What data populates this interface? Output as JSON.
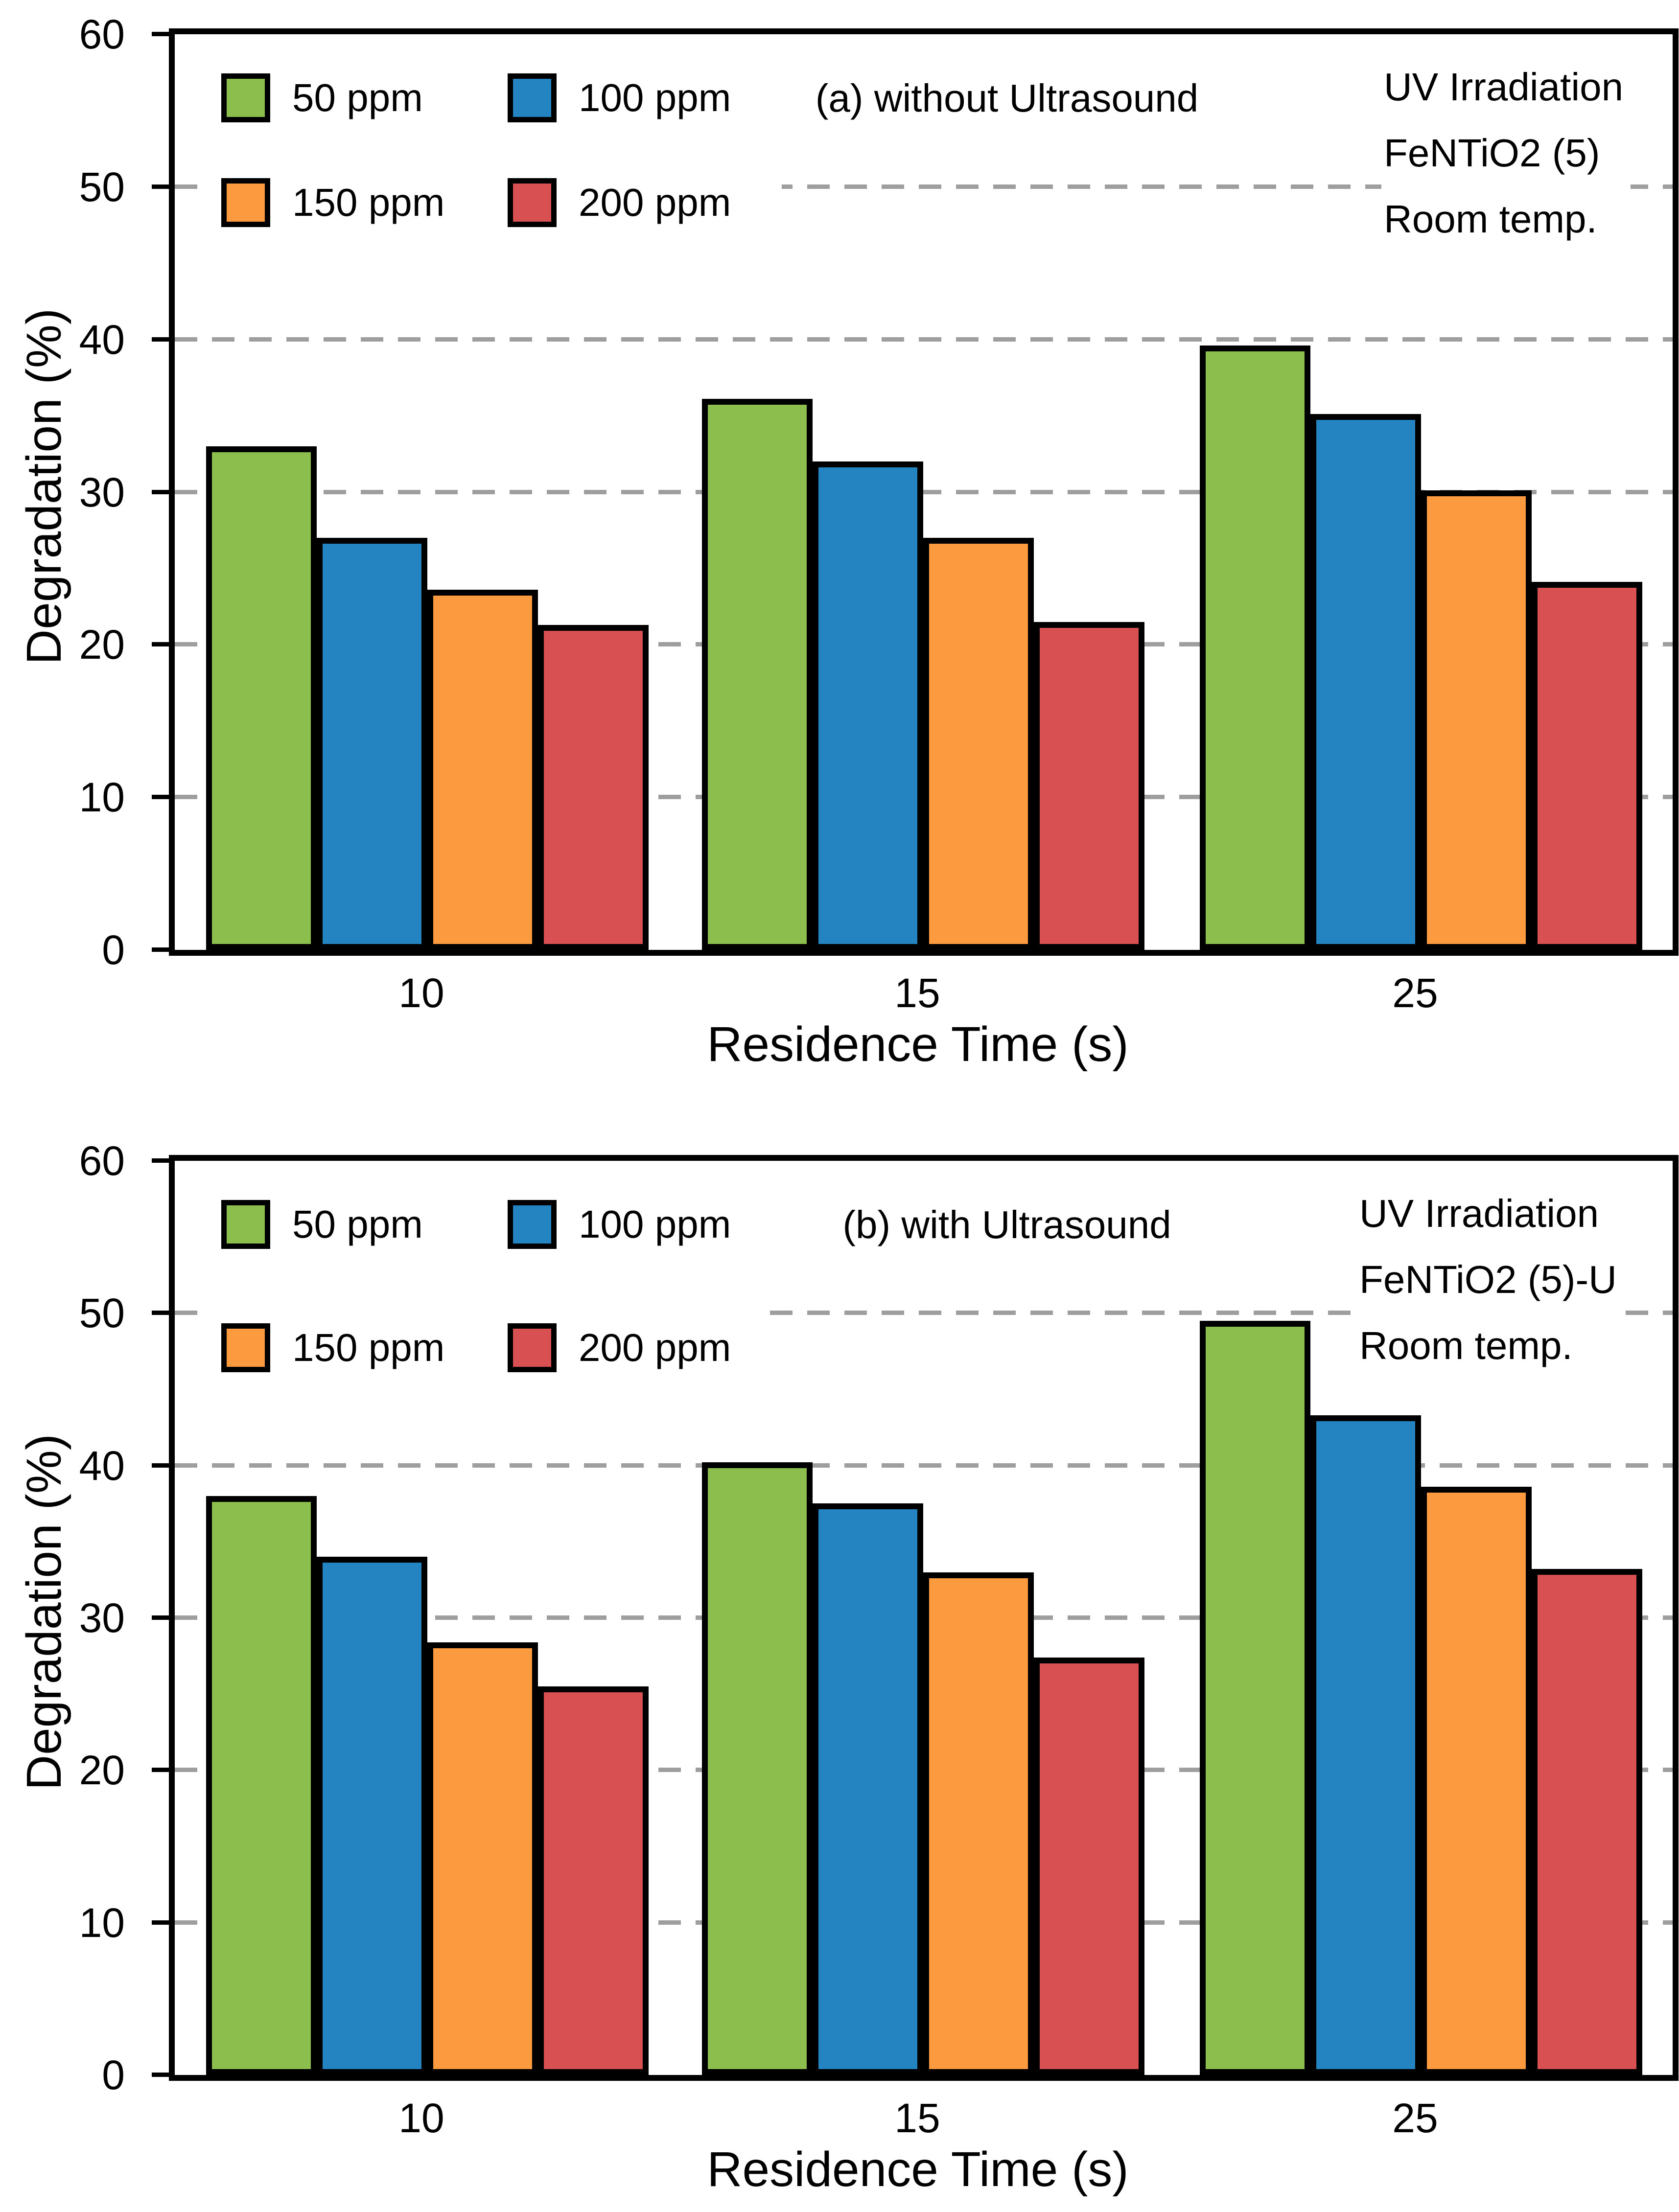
{
  "figure": {
    "background": "#ffffff",
    "grid_color": "#9e9e9e",
    "axis_color": "#000000"
  },
  "chart_data": [
    {
      "type": "bar",
      "title": "(a) without Ultrasound",
      "xlabel": "Residence Time (s)",
      "ylabel": "Degradation (%)",
      "ylim": [
        0,
        60
      ],
      "yticks": [
        0,
        10,
        20,
        30,
        40,
        50,
        60
      ],
      "gridlines": [
        10,
        20,
        30,
        40,
        50
      ],
      "grid_style": "dashed horizontal",
      "legend_position": "upper-left-inside",
      "categories": [
        "10",
        "15",
        "25"
      ],
      "series": [
        {
          "name": "50 ppm",
          "color": "#8CBE4E",
          "values": [
            33.0,
            36.1,
            39.6
          ]
        },
        {
          "name": "100 ppm",
          "color": "#2484C2",
          "values": [
            27.0,
            32.0,
            35.1
          ]
        },
        {
          "name": "150 ppm",
          "color": "#FB9A3E",
          "values": [
            23.6,
            27.0,
            30.1
          ]
        },
        {
          "name": "200 ppm",
          "color": "#D95052",
          "values": [
            21.3,
            21.5,
            24.1
          ]
        }
      ],
      "annotation": [
        "UV Irradiation",
        "FeNTiO2 (5)",
        "Room temp."
      ]
    },
    {
      "type": "bar",
      "title": "(b) with Ultrasound",
      "xlabel": "Residence Time (s)",
      "ylabel": "Degradation (%)",
      "ylim": [
        0,
        60
      ],
      "yticks": [
        0,
        10,
        20,
        30,
        40,
        50,
        60
      ],
      "gridlines": [
        10,
        20,
        30,
        40,
        50
      ],
      "grid_style": "dashed horizontal",
      "legend_position": "upper-left-inside",
      "categories": [
        "10",
        "15",
        "25"
      ],
      "series": [
        {
          "name": "50 ppm",
          "color": "#8CBE4E",
          "values": [
            38.0,
            40.2,
            49.5
          ]
        },
        {
          "name": "100 ppm",
          "color": "#2484C2",
          "values": [
            34.0,
            37.5,
            43.3
          ]
        },
        {
          "name": "150 ppm",
          "color": "#FB9A3E",
          "values": [
            28.4,
            33.0,
            38.6
          ]
        },
        {
          "name": "200 ppm",
          "color": "#D95052",
          "values": [
            25.5,
            27.4,
            33.2
          ]
        }
      ],
      "annotation": [
        "UV Irradiation",
        "FeNTiO2 (5)-U",
        "Room temp."
      ]
    }
  ]
}
